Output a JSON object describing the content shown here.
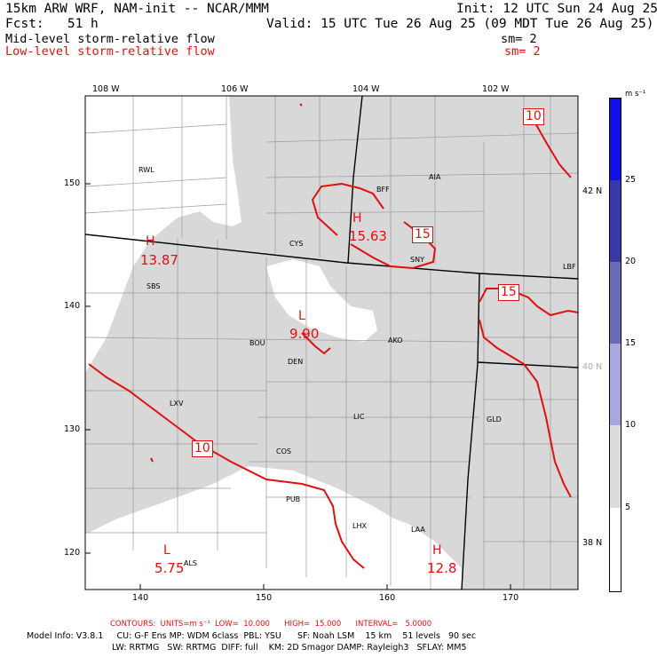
{
  "header": {
    "line1_left": "15km ARW WRF, NAM-init -- NCAR/MMM",
    "line1_right": "Init: 12 UTC Sun 24 Aug 25",
    "line2_left": "Fcst:   51 h",
    "line2_right": "Valid: 15 UTC Tue 26 Aug 25 (09 MDT Tue 26 Aug 25)",
    "line3_left": "Mid-level storm-relative flow",
    "line3_right": "sm= 2",
    "line4_left": "Low-level storm-relative flow",
    "line4_right": "sm= 2"
  },
  "map": {
    "top_lon_labels": [
      "108 W",
      "106 W",
      "104 W",
      "102 W"
    ],
    "right_lat_labels": [
      "42 N",
      "40 N",
      "38 N"
    ],
    "bottom_x_ticks": [
      "140",
      "150",
      "160",
      "170"
    ],
    "left_y_ticks": [
      "150",
      "140",
      "130",
      "120"
    ],
    "stations": [
      "RWL",
      "BFF",
      "AIA",
      "CYS",
      "SNY",
      "LBF",
      "SBS",
      "BOU",
      "DEN",
      "AKO",
      "LXV",
      "LIC",
      "GLD",
      "COS",
      "PUB",
      "LHX",
      "LAA",
      "ALS"
    ],
    "highs_lows": [
      {
        "letter": "H",
        "value": "15.63"
      },
      {
        "letter": "H",
        "value": "13.87"
      },
      {
        "letter": "L",
        "value": "9.90"
      },
      {
        "letter": "L",
        "value": "5.75"
      },
      {
        "letter": "H",
        "value": "12.8"
      }
    ],
    "contour_labels": [
      "10",
      "15",
      "15",
      "10"
    ],
    "colors": {
      "shade": "#d8d8d8",
      "contour": "#e01010",
      "border": "#000000"
    }
  },
  "colorbar": {
    "unit": "m s⁻¹",
    "ticks": [
      "25",
      "20",
      "15",
      "10",
      "5"
    ],
    "bins": [
      {
        "range": "25+",
        "color": "#1010e8"
      },
      {
        "range": "20-25",
        "color": "#3838a8"
      },
      {
        "range": "15-20",
        "color": "#6a6ab8"
      },
      {
        "range": "10-15",
        "color": "#a8a8e0"
      },
      {
        "range": "5-10",
        "color": "#dcdcdc"
      },
      {
        "range": "0-5",
        "color": "#ffffff"
      }
    ]
  },
  "footer": {
    "contours": "CONTOURS:  UNITS=m s⁻¹  LOW=  10.000      HIGH=  15.000      INTERVAL=   5.0000",
    "model_line1": "Model Info: V3.8.1     CU: G-F Ens MP: WDM 6class  PBL: YSU      SF: Noah LSM    15 km    51 levels   90 sec",
    "model_line2": "LW: RRTMG   SW: RRTMG  DIFF: full    KM: 2D Smagor DAMP: Rayleigh3   SFLAY: MM5"
  }
}
